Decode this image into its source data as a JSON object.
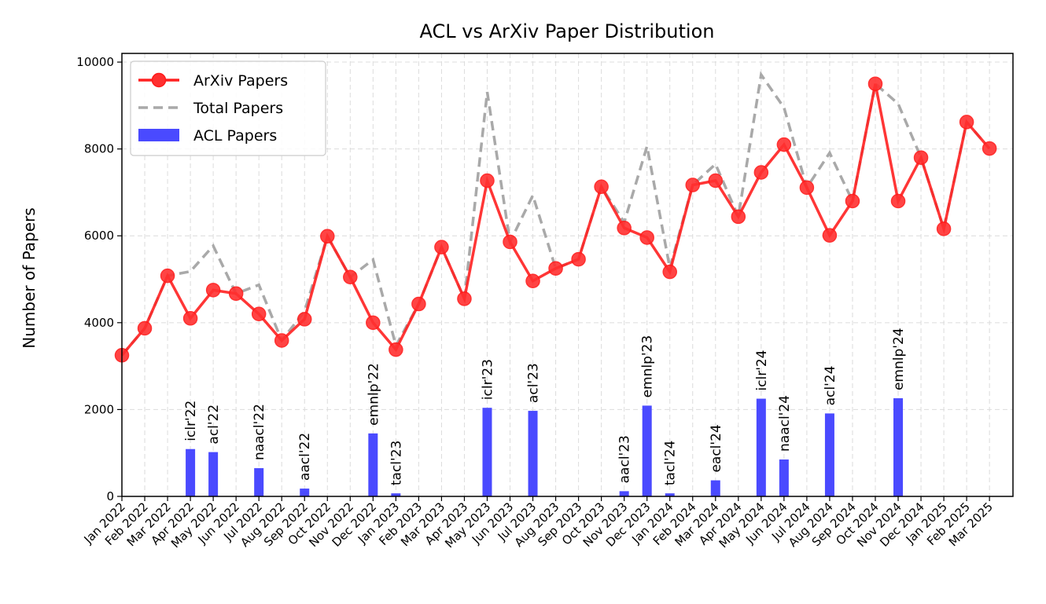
{
  "chart_data": {
    "type": "line",
    "title": "ACL vs ArXiv Paper Distribution",
    "xlabel": "",
    "ylabel": "Number of Papers",
    "ylim": [
      0,
      10200
    ],
    "yticks": [
      0,
      2000,
      4000,
      6000,
      8000,
      10000
    ],
    "grid": true,
    "legend_position": "top-left",
    "categories": [
      "Jan 2022",
      "Feb 2022",
      "Mar 2022",
      "Apr 2022",
      "May 2022",
      "Jun 2022",
      "Jul 2022",
      "Aug 2022",
      "Sep 2022",
      "Oct 2022",
      "Nov 2022",
      "Dec 2022",
      "Jan 2023",
      "Feb 2023",
      "Mar 2023",
      "Apr 2023",
      "May 2023",
      "Jun 2023",
      "Jul 2023",
      "Aug 2023",
      "Sep 2023",
      "Oct 2023",
      "Nov 2023",
      "Dec 2023",
      "Jan 2024",
      "Feb 2024",
      "Mar 2024",
      "Apr 2024",
      "May 2024",
      "Jun 2024",
      "Jul 2024",
      "Aug 2024",
      "Sep 2024",
      "Oct 2024",
      "Nov 2024",
      "Dec 2024",
      "Jan 2025",
      "Feb 2025",
      "Mar 2025"
    ],
    "series": [
      {
        "name": "ArXiv Papers",
        "kind": "line",
        "color": "#ff2020",
        "values": [
          3250,
          3870,
          5080,
          4100,
          4750,
          4670,
          4200,
          3590,
          4080,
          5990,
          5050,
          4000,
          3380,
          4430,
          5740,
          4550,
          7270,
          5860,
          4960,
          5250,
          5460,
          7130,
          6180,
          5960,
          5170,
          7170,
          7270,
          6440,
          7460,
          8100,
          7110,
          6010,
          6800,
          9500,
          6800,
          7800,
          6160,
          8620,
          8010
        ]
      },
      {
        "name": "Total Papers",
        "kind": "dashed-line",
        "color": "#a9a9a9",
        "values": [
          3250,
          3870,
          5080,
          5180,
          5770,
          4670,
          4870,
          3590,
          4260,
          5990,
          5050,
          5450,
          3470,
          4430,
          5740,
          4550,
          9310,
          5860,
          6930,
          5250,
          5460,
          7130,
          6310,
          8060,
          5260,
          7170,
          7650,
          6440,
          9710,
          8950,
          7110,
          7910,
          6800,
          9500,
          9040,
          7800,
          6160,
          8620,
          8010
        ]
      },
      {
        "name": "ACL Papers",
        "kind": "bar",
        "color": "#4a4aff",
        "values": [
          0,
          0,
          0,
          1090,
          1020,
          0,
          650,
          0,
          180,
          0,
          0,
          1450,
          70,
          0,
          0,
          0,
          2040,
          0,
          1970,
          0,
          0,
          0,
          120,
          2090,
          70,
          0,
          370,
          0,
          2250,
          850,
          0,
          1910,
          0,
          0,
          2260,
          0,
          0,
          0,
          0
        ]
      }
    ],
    "bar_annotations": [
      {
        "index": 3,
        "label": "iclr'22"
      },
      {
        "index": 4,
        "label": "acl'22"
      },
      {
        "index": 6,
        "label": "naacl'22"
      },
      {
        "index": 8,
        "label": "aacl'22"
      },
      {
        "index": 11,
        "label": "emnlp'22"
      },
      {
        "index": 12,
        "label": "tacl'23"
      },
      {
        "index": 16,
        "label": "iclr'23"
      },
      {
        "index": 18,
        "label": "acl'23"
      },
      {
        "index": 22,
        "label": "aacl'23"
      },
      {
        "index": 23,
        "label": "emnlp'23"
      },
      {
        "index": 24,
        "label": "tacl'24"
      },
      {
        "index": 26,
        "label": "eacl'24"
      },
      {
        "index": 28,
        "label": "iclr'24"
      },
      {
        "index": 29,
        "label": "naacl'24"
      },
      {
        "index": 31,
        "label": "acl'24"
      },
      {
        "index": 34,
        "label": "emnlp'24"
      }
    ]
  }
}
